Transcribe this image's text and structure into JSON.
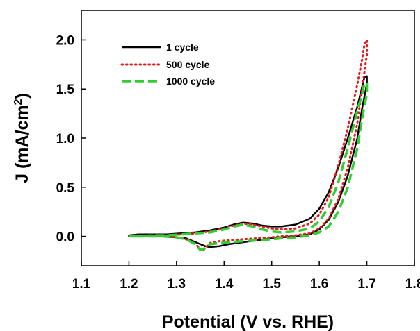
{
  "chart_data": {
    "type": "line",
    "xlabel": "Potential (V vs. RHE)",
    "ylabel_main": "J (mA/cm",
    "ylabel_sup": "2",
    "ylabel_close": ")",
    "xlim": [
      1.1,
      1.8
    ],
    "ylim": [
      -0.3,
      2.3
    ],
    "x_ticks": [
      "1.1",
      "1.2",
      "1.3",
      "1.4",
      "1.5",
      "1.6",
      "1.7",
      "1.8"
    ],
    "y_ticks": [
      "0.0",
      "0.5",
      "1.0",
      "1.5",
      "2.0"
    ],
    "grid": false,
    "legend_position": "top-left",
    "series": [
      {
        "name": "1 cycle",
        "color": "#000000",
        "style": "solid",
        "x": [
          1.2,
          1.22,
          1.25,
          1.28,
          1.31,
          1.34,
          1.37,
          1.4,
          1.42,
          1.44,
          1.46,
          1.48,
          1.5,
          1.52,
          1.55,
          1.58,
          1.6,
          1.62,
          1.64,
          1.66,
          1.68,
          1.69,
          1.695,
          1.7,
          1.7,
          1.69,
          1.68,
          1.66,
          1.64,
          1.62,
          1.6,
          1.58,
          1.55,
          1.52,
          1.5,
          1.47,
          1.44,
          1.41,
          1.39,
          1.37,
          1.36,
          1.34,
          1.32,
          1.3,
          1.27,
          1.24,
          1.2
        ],
        "y": [
          0.01,
          0.02,
          0.02,
          0.02,
          0.03,
          0.04,
          0.06,
          0.09,
          0.12,
          0.14,
          0.13,
          0.11,
          0.1,
          0.1,
          0.12,
          0.18,
          0.28,
          0.45,
          0.7,
          1.0,
          1.32,
          1.52,
          1.62,
          1.63,
          1.55,
          1.3,
          1.0,
          0.62,
          0.35,
          0.17,
          0.07,
          0.02,
          0.0,
          -0.01,
          -0.02,
          -0.04,
          -0.06,
          -0.08,
          -0.1,
          -0.11,
          -0.1,
          -0.06,
          -0.02,
          -0.01,
          0.0,
          0.0,
          0.01
        ]
      },
      {
        "name": "500 cycle",
        "color": "#e41a1c",
        "style": "dotted",
        "x": [
          1.2,
          1.22,
          1.25,
          1.28,
          1.31,
          1.34,
          1.37,
          1.4,
          1.42,
          1.44,
          1.46,
          1.48,
          1.5,
          1.52,
          1.55,
          1.58,
          1.6,
          1.62,
          1.64,
          1.66,
          1.68,
          1.69,
          1.695,
          1.7,
          1.7,
          1.69,
          1.68,
          1.66,
          1.64,
          1.62,
          1.6,
          1.58,
          1.55,
          1.52,
          1.5,
          1.47,
          1.44,
          1.41,
          1.39,
          1.37,
          1.36,
          1.355,
          1.34,
          1.32,
          1.3,
          1.27,
          1.24,
          1.2
        ],
        "y": [
          0.0,
          0.0,
          0.01,
          0.01,
          0.02,
          0.03,
          0.05,
          0.08,
          0.11,
          0.13,
          0.12,
          0.1,
          0.08,
          0.07,
          0.08,
          0.13,
          0.22,
          0.4,
          0.72,
          1.1,
          1.55,
          1.8,
          1.95,
          2.0,
          1.85,
          1.5,
          1.15,
          0.7,
          0.38,
          0.18,
          0.08,
          0.03,
          0.01,
          0.0,
          -0.01,
          -0.02,
          -0.03,
          -0.04,
          -0.05,
          -0.07,
          -0.12,
          -0.15,
          -0.08,
          -0.03,
          -0.01,
          0.0,
          0.0,
          0.0
        ]
      },
      {
        "name": "1000 cycle",
        "color": "#33cc33",
        "style": "dashed",
        "x": [
          1.2,
          1.22,
          1.25,
          1.28,
          1.31,
          1.34,
          1.37,
          1.4,
          1.42,
          1.44,
          1.46,
          1.48,
          1.5,
          1.52,
          1.55,
          1.58,
          1.6,
          1.62,
          1.64,
          1.66,
          1.68,
          1.69,
          1.695,
          1.7,
          1.7,
          1.69,
          1.68,
          1.66,
          1.64,
          1.62,
          1.6,
          1.58,
          1.55,
          1.52,
          1.5,
          1.47,
          1.44,
          1.41,
          1.39,
          1.37,
          1.36,
          1.35,
          1.34,
          1.32,
          1.3,
          1.27,
          1.24,
          1.2
        ],
        "y": [
          0.0,
          0.0,
          0.01,
          0.01,
          0.02,
          0.03,
          0.04,
          0.07,
          0.1,
          0.12,
          0.1,
          0.07,
          0.05,
          0.04,
          0.05,
          0.08,
          0.15,
          0.3,
          0.55,
          0.9,
          1.28,
          1.45,
          1.55,
          1.56,
          1.45,
          1.2,
          0.9,
          0.5,
          0.25,
          0.1,
          0.04,
          0.01,
          -0.01,
          -0.02,
          -0.03,
          -0.04,
          -0.05,
          -0.06,
          -0.07,
          -0.08,
          -0.12,
          -0.14,
          -0.08,
          -0.03,
          -0.01,
          0.0,
          0.0,
          0.0
        ]
      }
    ]
  }
}
